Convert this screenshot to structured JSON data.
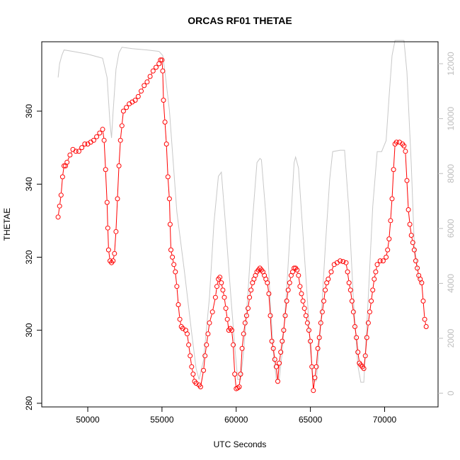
{
  "chart_data": {
    "type": "line",
    "title": "ORCAS RF01 THETAE",
    "xlabel": "UTC Seconds",
    "ylabel": "THETAE",
    "xlim": [
      46900,
      73600
    ],
    "ylim": [
      279,
      379
    ],
    "y2lim": [
      -500,
      12800
    ],
    "x_ticks": [
      50000,
      55000,
      60000,
      65000,
      70000
    ],
    "y_ticks": [
      280,
      300,
      320,
      340,
      360
    ],
    "y2_ticks": [
      0,
      2000,
      4000,
      6000,
      8000,
      10000,
      12000
    ],
    "colors": {
      "thetae": "#ff0000",
      "altitude": "#c8c8c8",
      "right_axis": "#bdbdbd"
    },
    "series": [
      {
        "values": [
          [
            48000,
            331
          ],
          [
            48100,
            334
          ],
          [
            48200,
            337
          ],
          [
            48300,
            342
          ],
          [
            48400,
            345
          ],
          [
            48500,
            345
          ],
          [
            48600,
            346
          ],
          [
            48800,
            348
          ],
          [
            49000,
            349.5
          ],
          [
            49200,
            349
          ],
          [
            49400,
            349
          ],
          [
            49600,
            350
          ],
          [
            49800,
            351
          ],
          [
            50000,
            351
          ],
          [
            50200,
            351.5
          ],
          [
            50400,
            352
          ],
          [
            50600,
            353
          ],
          [
            50800,
            354
          ],
          [
            51000,
            355
          ],
          [
            51100,
            352
          ],
          [
            51200,
            344
          ],
          [
            51300,
            335
          ],
          [
            51350,
            328
          ],
          [
            51400,
            322
          ],
          [
            51500,
            319
          ],
          [
            51600,
            318.5
          ],
          [
            51700,
            319
          ],
          [
            51800,
            321
          ],
          [
            51900,
            327
          ],
          [
            52000,
            336
          ],
          [
            52100,
            345
          ],
          [
            52200,
            352
          ],
          [
            52300,
            356
          ],
          [
            52400,
            360
          ],
          [
            52600,
            361
          ],
          [
            52800,
            362
          ],
          [
            53000,
            362.5
          ],
          [
            53200,
            363
          ],
          [
            53400,
            364
          ],
          [
            53600,
            365.5
          ],
          [
            53800,
            367
          ],
          [
            54000,
            368
          ],
          [
            54200,
            369.5
          ],
          [
            54400,
            371
          ],
          [
            54600,
            372
          ],
          [
            54800,
            373
          ],
          [
            54900,
            374
          ],
          [
            55000,
            374
          ],
          [
            55050,
            371
          ],
          [
            55100,
            363
          ],
          [
            55200,
            357
          ],
          [
            55300,
            351
          ],
          [
            55400,
            342
          ],
          [
            55500,
            336
          ],
          [
            55550,
            329
          ],
          [
            55600,
            322
          ],
          [
            55700,
            320
          ],
          [
            55800,
            318
          ],
          [
            55900,
            316
          ],
          [
            56000,
            312
          ],
          [
            56100,
            307
          ],
          [
            56200,
            303
          ],
          [
            56300,
            301
          ],
          [
            56400,
            300.5
          ],
          [
            56600,
            300
          ],
          [
            56700,
            299
          ],
          [
            56800,
            296
          ],
          [
            56900,
            293
          ],
          [
            57000,
            290
          ],
          [
            57100,
            288
          ],
          [
            57200,
            286
          ],
          [
            57300,
            285.5
          ],
          [
            57500,
            285
          ],
          [
            57600,
            284.5
          ],
          [
            57800,
            289
          ],
          [
            57900,
            293
          ],
          [
            58000,
            296
          ],
          [
            58100,
            299
          ],
          [
            58200,
            302
          ],
          [
            58400,
            305
          ],
          [
            58600,
            309
          ],
          [
            58700,
            312
          ],
          [
            58800,
            314
          ],
          [
            58900,
            314.5
          ],
          [
            59000,
            313
          ],
          [
            59100,
            311
          ],
          [
            59200,
            309
          ],
          [
            59300,
            306
          ],
          [
            59400,
            303
          ],
          [
            59500,
            300
          ],
          [
            59600,
            300.5
          ],
          [
            59700,
            300
          ],
          [
            59800,
            296
          ],
          [
            59900,
            288
          ],
          [
            60000,
            284
          ],
          [
            60100,
            284.2
          ],
          [
            60200,
            284.5
          ],
          [
            60300,
            288
          ],
          [
            60400,
            295
          ],
          [
            60500,
            299
          ],
          [
            60600,
            302
          ],
          [
            60700,
            304
          ],
          [
            60800,
            306
          ],
          [
            60900,
            309
          ],
          [
            61000,
            311
          ],
          [
            61100,
            313
          ],
          [
            61200,
            314
          ],
          [
            61300,
            315
          ],
          [
            61400,
            316
          ],
          [
            61500,
            316.5
          ],
          [
            61600,
            317
          ],
          [
            61700,
            316.5
          ],
          [
            61800,
            316
          ],
          [
            61900,
            315
          ],
          [
            62000,
            314
          ],
          [
            62100,
            313
          ],
          [
            62200,
            310
          ],
          [
            62300,
            304
          ],
          [
            62400,
            297
          ],
          [
            62500,
            295
          ],
          [
            62600,
            292
          ],
          [
            62700,
            290
          ],
          [
            62800,
            286
          ],
          [
            62900,
            291
          ],
          [
            63000,
            294
          ],
          [
            63100,
            297
          ],
          [
            63200,
            300
          ],
          [
            63300,
            304
          ],
          [
            63400,
            308
          ],
          [
            63500,
            311
          ],
          [
            63600,
            313
          ],
          [
            63700,
            315
          ],
          [
            63800,
            316
          ],
          [
            63900,
            317
          ],
          [
            64000,
            317
          ],
          [
            64100,
            316.5
          ],
          [
            64200,
            315
          ],
          [
            64300,
            312
          ],
          [
            64400,
            310
          ],
          [
            64500,
            308
          ],
          [
            64600,
            306
          ],
          [
            64700,
            304
          ],
          [
            64800,
            302
          ],
          [
            64900,
            300
          ],
          [
            65000,
            297
          ],
          [
            65100,
            290
          ],
          [
            65200,
            283.5
          ],
          [
            65300,
            287
          ],
          [
            65400,
            290
          ],
          [
            65500,
            295
          ],
          [
            65600,
            298
          ],
          [
            65700,
            302
          ],
          [
            65800,
            305
          ],
          [
            65900,
            308
          ],
          [
            66000,
            311
          ],
          [
            66100,
            313
          ],
          [
            66200,
            314
          ],
          [
            66400,
            316
          ],
          [
            66600,
            318
          ],
          [
            66800,
            318.5
          ],
          [
            67000,
            319
          ],
          [
            67200,
            318.8
          ],
          [
            67400,
            318.5
          ],
          [
            67500,
            316
          ],
          [
            67600,
            313
          ],
          [
            67700,
            311
          ],
          [
            67800,
            308
          ],
          [
            67900,
            305
          ],
          [
            68000,
            301
          ],
          [
            68100,
            298
          ],
          [
            68200,
            294
          ],
          [
            68300,
            291
          ],
          [
            68400,
            290.5
          ],
          [
            68500,
            290
          ],
          [
            68600,
            289.5
          ],
          [
            68700,
            293
          ],
          [
            68800,
            298
          ],
          [
            68900,
            302
          ],
          [
            69000,
            305
          ],
          [
            69100,
            308
          ],
          [
            69200,
            311
          ],
          [
            69300,
            314
          ],
          [
            69400,
            316
          ],
          [
            69500,
            318
          ],
          [
            69700,
            319
          ],
          [
            69900,
            319
          ],
          [
            70100,
            320
          ],
          [
            70200,
            322
          ],
          [
            70300,
            325
          ],
          [
            70400,
            330
          ],
          [
            70500,
            336
          ],
          [
            70600,
            344
          ],
          [
            70700,
            351
          ],
          [
            70800,
            351.5
          ],
          [
            71000,
            351.5
          ],
          [
            71200,
            351
          ],
          [
            71300,
            350.5
          ],
          [
            71400,
            349
          ],
          [
            71500,
            341
          ],
          [
            71600,
            333
          ],
          [
            71700,
            329
          ],
          [
            71800,
            326
          ],
          [
            71900,
            324
          ],
          [
            72000,
            322
          ],
          [
            72100,
            319
          ],
          [
            72200,
            317
          ],
          [
            72300,
            315
          ],
          [
            72400,
            314
          ],
          [
            72500,
            313
          ],
          [
            72600,
            308
          ],
          [
            72700,
            303
          ],
          [
            72800,
            301
          ]
        ]
      },
      {
        "axis": "right",
        "values": [
          [
            48000,
            11500
          ],
          [
            48100,
            12000
          ],
          [
            48250,
            12300
          ],
          [
            48400,
            12500
          ],
          [
            49000,
            12450
          ],
          [
            50000,
            12350
          ],
          [
            51000,
            12200
          ],
          [
            51300,
            11500
          ],
          [
            51500,
            9800
          ],
          [
            51600,
            9300
          ],
          [
            51700,
            10200
          ],
          [
            51900,
            11800
          ],
          [
            52100,
            12400
          ],
          [
            52300,
            12600
          ],
          [
            53000,
            12550
          ],
          [
            54000,
            12500
          ],
          [
            54800,
            12450
          ],
          [
            55050,
            12300
          ],
          [
            55200,
            11700
          ],
          [
            55500,
            10300
          ],
          [
            56000,
            6600
          ],
          [
            56500,
            4500
          ],
          [
            57000,
            2200
          ],
          [
            57300,
            900
          ],
          [
            57500,
            500
          ],
          [
            57800,
            1200
          ],
          [
            58200,
            3500
          ],
          [
            58500,
            6200
          ],
          [
            58800,
            7900
          ],
          [
            59000,
            8050
          ],
          [
            59300,
            6000
          ],
          [
            59600,
            3800
          ],
          [
            59900,
            1700
          ],
          [
            60100,
            500
          ],
          [
            60300,
            500
          ],
          [
            60500,
            1500
          ],
          [
            60800,
            3700
          ],
          [
            61100,
            6300
          ],
          [
            61400,
            8400
          ],
          [
            61600,
            8550
          ],
          [
            61700,
            8500
          ],
          [
            62000,
            6500
          ],
          [
            62300,
            3300
          ],
          [
            62500,
            1500
          ],
          [
            62700,
            500
          ],
          [
            62900,
            500
          ],
          [
            63100,
            1500
          ],
          [
            63400,
            3800
          ],
          [
            63700,
            6500
          ],
          [
            63900,
            8400
          ],
          [
            64000,
            8600
          ],
          [
            64200,
            8200
          ],
          [
            64500,
            5800
          ],
          [
            64800,
            3400
          ],
          [
            65000,
            1600
          ],
          [
            65200,
            450
          ],
          [
            65400,
            450
          ],
          [
            65700,
            2500
          ],
          [
            66000,
            5300
          ],
          [
            66300,
            7800
          ],
          [
            66500,
            8800
          ],
          [
            67000,
            8850
          ],
          [
            67300,
            8850
          ],
          [
            67600,
            6600
          ],
          [
            67900,
            3400
          ],
          [
            68200,
            1000
          ],
          [
            68400,
            400
          ],
          [
            68600,
            400
          ],
          [
            68900,
            3500
          ],
          [
            69200,
            6800
          ],
          [
            69500,
            8800
          ],
          [
            69800,
            8800
          ],
          [
            70100,
            9200
          ],
          [
            70300,
            10800
          ],
          [
            70500,
            12300
          ],
          [
            70700,
            12850
          ],
          [
            71300,
            12850
          ],
          [
            71500,
            11700
          ],
          [
            71800,
            8300
          ],
          [
            72000,
            5400
          ],
          [
            72300,
            4200
          ],
          [
            72500,
            4000
          ]
        ]
      }
    ]
  }
}
